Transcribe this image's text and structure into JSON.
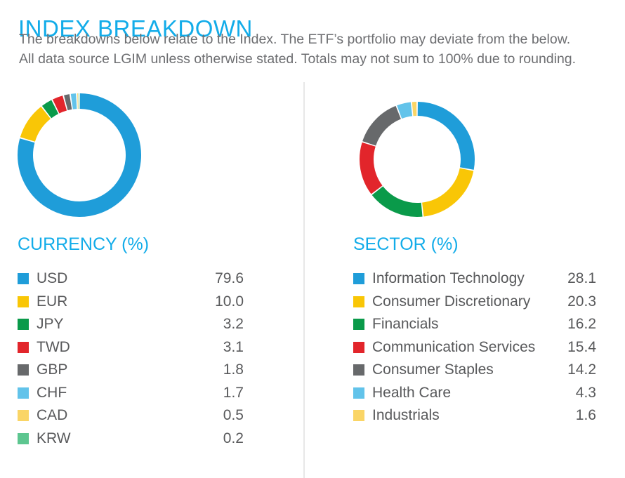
{
  "page": {
    "title": "INDEX BREAKDOWN",
    "subtitle_line1": "The breakdowns below relate to the Index. The ETF’s portfolio may deviate from the below.",
    "subtitle_line2": "All data source LGIM unless otherwise stated. Totals may not sum to 100% due to rounding."
  },
  "colors": {
    "accent_cyan": "#12ACE9",
    "body_text": "#6D6E71",
    "legend_text": "#58595B",
    "divider": "#E7E7E7",
    "background": "#FFFFFF"
  },
  "chart_data": [
    {
      "type": "pie",
      "variant": "donut",
      "title": "CURRENCY (%)",
      "unit": "%",
      "start_angle": "top",
      "direction": "clockwise",
      "legend_position": "below",
      "categories": [
        "USD",
        "EUR",
        "JPY",
        "TWD",
        "GBP",
        "CHF",
        "CAD",
        "KRW"
      ],
      "values": [
        79.6,
        10.0,
        3.2,
        3.1,
        1.8,
        1.7,
        0.5,
        0.2
      ],
      "colors": [
        "#1F9DD9",
        "#F9C606",
        "#0A9A4A",
        "#E2252B",
        "#67696B",
        "#62C3EA",
        "#FAD566",
        "#5DC690"
      ]
    },
    {
      "type": "pie",
      "variant": "donut",
      "title": "SECTOR (%)",
      "unit": "%",
      "start_angle": "top",
      "direction": "clockwise",
      "legend_position": "below",
      "categories": [
        "Information Technology",
        "Consumer Discretionary",
        "Financials",
        "Communication Services",
        "Consumer Staples",
        "Health Care",
        "Industrials"
      ],
      "values": [
        28.1,
        20.3,
        16.2,
        15.4,
        14.2,
        4.3,
        1.6
      ],
      "colors": [
        "#1F9DD9",
        "#F9C606",
        "#0A9A4A",
        "#E2252B",
        "#67696B",
        "#62C3EA",
        "#FAD566"
      ]
    }
  ]
}
